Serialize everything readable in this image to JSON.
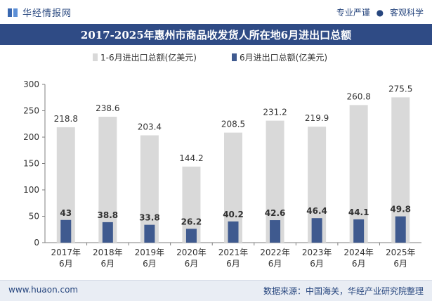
{
  "header": {
    "brand": "华经情报网",
    "tagline_left": "专业严谨",
    "tagline_sep": "●",
    "tagline_right": "客观科学"
  },
  "colors": {
    "brand": "#27467e",
    "title_bg": "#2f4b85",
    "series_total": "#d9d9d9",
    "series_june": "#3f5a8f"
  },
  "chart_data": {
    "type": "bar",
    "title": "2017-2025年惠州市商品收发货人所在地6月进出口总额",
    "categories": [
      [
        "2017年",
        "6月"
      ],
      [
        "2018年",
        "6月"
      ],
      [
        "2019年",
        "6月"
      ],
      [
        "2020年",
        "6月"
      ],
      [
        "2021年",
        "6月"
      ],
      [
        "2022年",
        "6月"
      ],
      [
        "2023年",
        "6月"
      ],
      [
        "2024年",
        "6月"
      ],
      [
        "2025年",
        "6月"
      ]
    ],
    "series": [
      {
        "name": "1-6月进出口总额(亿美元)",
        "values": [
          218.8,
          238.6,
          203.4,
          144.2,
          208.5,
          231.2,
          219.9,
          260.8,
          275.5
        ]
      },
      {
        "name": "6月进出口总额(亿美元)",
        "values": [
          43,
          38.8,
          33.8,
          26.2,
          40.2,
          42.6,
          46.4,
          44.1,
          49.8
        ]
      }
    ],
    "value_labels": [
      [
        "218.8",
        "238.6",
        "203.4",
        "144.2",
        "208.5",
        "231.2",
        "219.9",
        "260.8",
        "275.5"
      ],
      [
        "43",
        "38.8",
        "33.8",
        "26.2",
        "40.2",
        "42.6",
        "46.4",
        "44.1",
        "49.8"
      ]
    ],
    "ylim": [
      0,
      300
    ],
    "yticks": [
      0,
      50,
      100,
      150,
      200,
      250,
      300
    ],
    "legend_position": "top",
    "grid": false
  },
  "footer": {
    "website": "www.huaon.com",
    "source": "数据来源：中国海关，华经产业研究院整理"
  }
}
